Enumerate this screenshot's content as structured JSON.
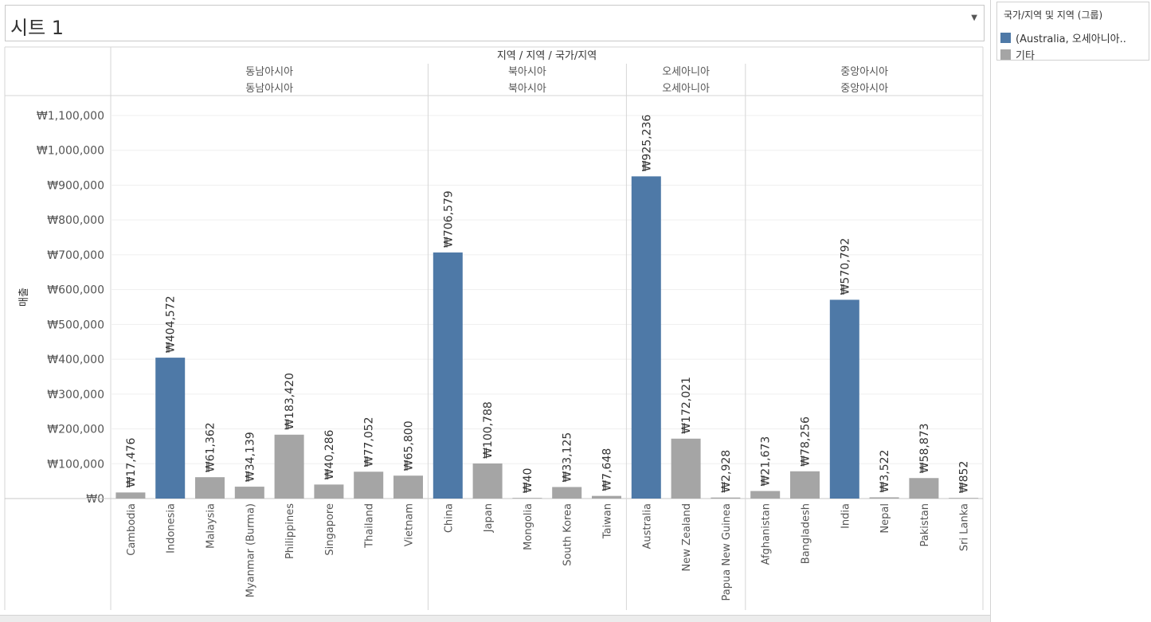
{
  "sheet": {
    "title": "시트 1"
  },
  "legend": {
    "title": "국가/지역 및 지역 (그룹)",
    "items": [
      {
        "label": "(Australia, 오세아니아..",
        "color": "#4e79a7"
      },
      {
        "label": "기타",
        "color": "#a5a5a5"
      }
    ]
  },
  "chart_data": {
    "type": "bar",
    "header_title": "지역 / 지역 / 국가/지역",
    "ylabel": "매출",
    "ylim": [
      0,
      1100000
    ],
    "yticks": [
      0,
      100000,
      200000,
      300000,
      400000,
      500000,
      600000,
      700000,
      800000,
      900000,
      1000000,
      1100000
    ],
    "ytick_labels": [
      "₩0",
      "₩100,000",
      "₩200,000",
      "₩300,000",
      "₩400,000",
      "₩500,000",
      "₩600,000",
      "₩700,000",
      "₩800,000",
      "₩900,000",
      "₩1,000,000",
      "₩1,100,000"
    ],
    "grid": true,
    "panels": [
      {
        "header1": "동남아시아",
        "header2": "동남아시아",
        "bars": [
          {
            "country": "Cambodia",
            "value": 17476,
            "label": "₩17,476",
            "group": "기타"
          },
          {
            "country": "Indonesia",
            "value": 404572,
            "label": "₩404,572",
            "group": "highlight"
          },
          {
            "country": "Malaysia",
            "value": 61362,
            "label": "₩61,362",
            "group": "기타"
          },
          {
            "country": "Myanmar (Burma)",
            "value": 34139,
            "label": "₩34,139",
            "group": "기타"
          },
          {
            "country": "Philippines",
            "value": 183420,
            "label": "₩183,420",
            "group": "기타"
          },
          {
            "country": "Singapore",
            "value": 40286,
            "label": "₩40,286",
            "group": "기타"
          },
          {
            "country": "Thailand",
            "value": 77052,
            "label": "₩77,052",
            "group": "기타"
          },
          {
            "country": "Vietnam",
            "value": 65800,
            "label": "₩65,800",
            "group": "기타"
          }
        ]
      },
      {
        "header1": "북아시아",
        "header2": "북아시아",
        "bars": [
          {
            "country": "China",
            "value": 706579,
            "label": "₩706,579",
            "group": "highlight"
          },
          {
            "country": "Japan",
            "value": 100788,
            "label": "₩100,788",
            "group": "기타"
          },
          {
            "country": "Mongolia",
            "value": 40,
            "label": "₩40",
            "group": "기타"
          },
          {
            "country": "South Korea",
            "value": 33125,
            "label": "₩33,125",
            "group": "기타"
          },
          {
            "country": "Taiwan",
            "value": 7648,
            "label": "₩7,648",
            "group": "기타"
          }
        ]
      },
      {
        "header1": "오세아니아",
        "header2": "오세아니아",
        "bars": [
          {
            "country": "Australia",
            "value": 925236,
            "label": "₩925,236",
            "group": "highlight"
          },
          {
            "country": "New Zealand",
            "value": 172021,
            "label": "₩172,021",
            "group": "기타"
          },
          {
            "country": "Papua New Guinea",
            "value": 2928,
            "label": "₩2,928",
            "group": "기타"
          }
        ]
      },
      {
        "header1": "중앙아시아",
        "header2": "중앙아시아",
        "bars": [
          {
            "country": "Afghanistan",
            "value": 21673,
            "label": "₩21,673",
            "group": "기타"
          },
          {
            "country": "Bangladesh",
            "value": 78256,
            "label": "₩78,256",
            "group": "기타"
          },
          {
            "country": "India",
            "value": 570792,
            "label": "₩570,792",
            "group": "highlight"
          },
          {
            "country": "Nepal",
            "value": 3522,
            "label": "₩3,522",
            "group": "기타"
          },
          {
            "country": "Pakistan",
            "value": 58873,
            "label": "₩58,873",
            "group": "기타"
          },
          {
            "country": "Sri Lanka",
            "value": 852,
            "label": "₩852",
            "group": "기타"
          }
        ]
      }
    ],
    "colors": {
      "highlight": "#4e79a7",
      "other": "#a5a5a5"
    }
  }
}
